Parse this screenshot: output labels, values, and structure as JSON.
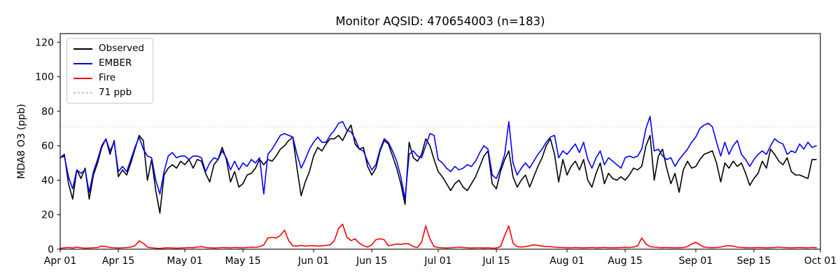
{
  "chart_data": {
    "type": "line",
    "title": "Monitor AQSID: 470654003 (n=183)",
    "xlabel": "",
    "ylabel": "MDA8 O3 (ppb)",
    "n_points": 183,
    "ylim": [
      0,
      125
    ],
    "yticks": [
      0,
      20,
      40,
      60,
      80,
      100,
      120
    ],
    "x_domain_days": 183,
    "xticks": [
      {
        "day": 0,
        "label": "Apr 01"
      },
      {
        "day": 14,
        "label": "Apr 15"
      },
      {
        "day": 30,
        "label": "May 01"
      },
      {
        "day": 44,
        "label": "May 15"
      },
      {
        "day": 61,
        "label": "Jun 01"
      },
      {
        "day": 75,
        "label": "Jun 15"
      },
      {
        "day": 91,
        "label": "Jul 01"
      },
      {
        "day": 105,
        "label": "Jul 15"
      },
      {
        "day": 122,
        "label": "Aug 01"
      },
      {
        "day": 136,
        "label": "Aug 15"
      },
      {
        "day": 153,
        "label": "Sep 01"
      },
      {
        "day": 167,
        "label": "Sep 15"
      },
      {
        "day": 183,
        "label": "Oct 01"
      }
    ],
    "grid": false,
    "legend_position": "upper left",
    "threshold_line": {
      "value": 71,
      "label": "71 ppb",
      "color": "#d3d3d3",
      "linestyle": "dotted"
    },
    "series": [
      {
        "name": "Observed",
        "color": "#000000",
        "values": [
          53,
          55,
          38,
          29,
          46,
          41,
          47,
          29,
          43,
          50,
          59,
          64,
          55,
          63,
          42,
          46,
          43,
          50,
          58,
          66,
          63,
          40,
          52,
          34,
          21,
          43,
          47,
          49,
          47,
          51,
          49,
          52,
          47,
          52,
          51,
          44,
          39,
          49,
          52,
          59,
          52,
          39,
          45,
          36,
          38,
          43,
          44,
          47,
          52,
          49,
          52,
          51,
          54,
          58,
          60,
          63,
          65,
          47,
          31,
          39,
          45,
          54,
          59,
          57,
          61,
          64,
          64,
          66,
          63,
          68,
          72,
          61,
          58,
          59,
          48,
          43,
          47,
          57,
          63,
          61,
          54,
          47,
          38,
          26,
          62,
          53,
          51,
          55,
          64,
          60,
          52,
          45,
          42,
          38,
          34,
          38,
          40,
          36,
          34,
          38,
          42,
          48,
          54,
          57,
          38,
          35,
          45,
          52,
          57,
          42,
          36,
          40,
          43,
          36,
          42,
          48,
          53,
          60,
          64,
          55,
          39,
          52,
          43,
          48,
          51,
          46,
          52,
          40,
          36,
          44,
          50,
          38,
          44,
          41,
          40,
          42,
          40,
          43,
          47,
          46,
          48,
          60,
          66,
          40,
          54,
          58,
          47,
          38,
          44,
          33,
          46,
          51,
          47,
          48,
          52,
          55,
          56,
          57,
          50,
          39,
          50,
          47,
          51,
          48,
          50,
          44,
          37,
          41,
          44,
          51,
          47,
          58,
          55,
          51,
          49,
          53,
          45,
          43,
          43,
          42,
          41,
          52,
          52
        ]
      },
      {
        "name": "EMBER",
        "color": "#0000ff",
        "values": [
          53,
          54,
          42,
          35,
          46,
          44,
          46,
          33,
          45,
          52,
          60,
          64,
          57,
          62,
          45,
          48,
          45,
          52,
          59,
          65,
          58,
          54,
          53,
          40,
          32,
          45,
          54,
          56,
          53,
          54,
          54,
          52,
          54,
          54,
          53,
          45,
          50,
          53,
          52,
          57,
          53,
          46,
          51,
          46,
          50,
          48,
          52,
          50,
          53,
          32,
          55,
          58,
          62,
          66,
          67,
          66,
          65,
          55,
          47,
          52,
          58,
          62,
          65,
          62,
          62,
          66,
          69,
          73,
          74,
          69,
          68,
          64,
          58,
          57,
          51,
          46,
          49,
          58,
          64,
          62,
          57,
          51,
          42,
          29,
          55,
          57,
          54,
          53,
          60,
          67,
          66,
          52,
          50,
          47,
          45,
          48,
          46,
          47,
          49,
          48,
          51,
          56,
          60,
          58,
          43,
          41,
          47,
          55,
          74,
          50,
          43,
          47,
          50,
          47,
          51,
          55,
          58,
          62,
          65,
          66,
          53,
          57,
          55,
          58,
          61,
          56,
          62,
          52,
          47,
          53,
          57,
          49,
          53,
          51,
          49,
          47,
          53,
          54,
          53,
          54,
          58,
          70,
          77,
          57,
          58,
          54,
          52,
          53,
          48,
          52,
          55,
          58,
          62,
          65,
          70,
          72,
          73,
          71,
          62,
          54,
          62,
          55,
          60,
          63,
          55,
          52,
          48,
          52,
          55,
          57,
          55,
          60,
          64,
          62,
          61,
          55,
          57,
          56,
          61,
          58,
          62,
          59,
          60
        ]
      },
      {
        "name": "Fire",
        "color": "#ff0000",
        "values": [
          0.5,
          0.8,
          1.0,
          0.7,
          1.2,
          0.8,
          0.6,
          0.7,
          0.8,
          1.0,
          1.8,
          1.5,
          1.0,
          0.8,
          0.7,
          0.8,
          1.0,
          1.2,
          2.0,
          4.8,
          3.5,
          1.2,
          0.8,
          0.6,
          0.5,
          0.7,
          0.8,
          0.7,
          0.6,
          0.7,
          0.8,
          1.0,
          0.9,
          1.2,
          1.5,
          1.0,
          0.8,
          0.7,
          0.8,
          1.0,
          0.9,
          0.8,
          1.0,
          0.9,
          0.8,
          1.0,
          1.2,
          1.0,
          1.5,
          2.5,
          6.5,
          6.8,
          6.5,
          8.0,
          11.0,
          5.0,
          2.0,
          1.8,
          2.2,
          1.8,
          2.0,
          2.0,
          1.8,
          2.0,
          2.2,
          2.5,
          5.0,
          12.0,
          14.5,
          7.0,
          5.0,
          6.0,
          3.5,
          2.0,
          1.2,
          2.5,
          5.5,
          6.0,
          5.5,
          2.0,
          2.5,
          3.0,
          2.8,
          3.2,
          3.0,
          1.5,
          1.0,
          4.0,
          13.5,
          6.0,
          1.5,
          1.0,
          0.8,
          0.7,
          0.8,
          1.0,
          1.2,
          1.0,
          0.8,
          0.7,
          0.8,
          0.8,
          0.7,
          0.8,
          0.6,
          0.7,
          1.5,
          8.0,
          13.5,
          3.5,
          1.5,
          1.2,
          1.5,
          2.0,
          2.5,
          2.2,
          1.8,
          1.5,
          1.5,
          1.2,
          1.0,
          1.0,
          0.9,
          0.8,
          1.0,
          0.9,
          0.8,
          0.9,
          1.0,
          0.8,
          0.9,
          1.0,
          0.9,
          0.8,
          0.9,
          1.0,
          1.1,
          1.0,
          1.2,
          2.0,
          6.5,
          3.0,
          1.5,
          1.2,
          1.0,
          0.9,
          1.0,
          0.9,
          0.8,
          0.9,
          1.0,
          1.5,
          3.0,
          4.0,
          2.5,
          1.2,
          1.0,
          0.9,
          1.0,
          1.2,
          1.8,
          2.0,
          1.8,
          1.2,
          1.0,
          0.9,
          0.8,
          0.9,
          1.0,
          0.9,
          0.8,
          0.9,
          1.0,
          1.2,
          1.0,
          0.9,
          0.8,
          0.9,
          1.0,
          0.9,
          0.8,
          1.0,
          0.9
        ]
      }
    ]
  },
  "legend": {
    "items": [
      {
        "label": "Observed",
        "color": "#000000",
        "style": "solid"
      },
      {
        "label": "EMBER",
        "color": "#0000ff",
        "style": "solid"
      },
      {
        "label": "Fire",
        "color": "#ff0000",
        "style": "solid"
      },
      {
        "label": "71 ppb",
        "color": "#d3d3d3",
        "style": "dotted"
      }
    ]
  }
}
